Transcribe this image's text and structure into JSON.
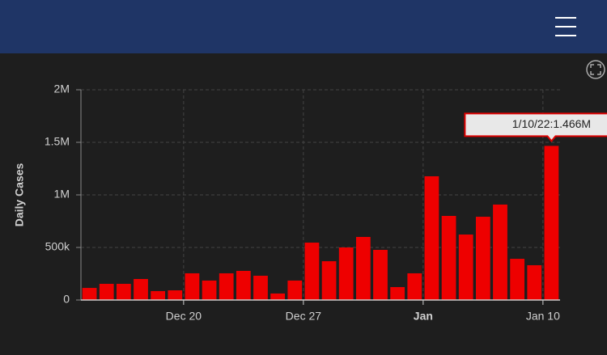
{
  "chart_data": {
    "type": "bar",
    "ylabel": "Daily Cases",
    "categories": [
      null,
      null,
      null,
      null,
      null,
      null,
      "Dec 20",
      null,
      null,
      null,
      null,
      null,
      null,
      "Dec 27",
      null,
      null,
      null,
      null,
      null,
      null,
      "Jan",
      null,
      null,
      null,
      null,
      null,
      null,
      "Jan 10"
    ],
    "values": [
      115000,
      154000,
      154000,
      200000,
      85000,
      92000,
      254000,
      185000,
      254000,
      277000,
      231000,
      62000,
      185000,
      546000,
      369000,
      500000,
      600000,
      477000,
      123000,
      254000,
      1177000,
      800000,
      623000,
      792000,
      908000,
      392000,
      331000,
      1466000
    ],
    "color": "#ee0000",
    "ylim": [
      0,
      2000000
    ],
    "yticks": [
      0,
      {
        "value": 500000,
        "label": "500k"
      },
      {
        "value": 1000000,
        "label": "1M"
      },
      {
        "value": 1500000,
        "label": "1.5M"
      },
      {
        "value": 2000000,
        "label": "2M"
      }
    ],
    "grid": true,
    "annotation": "1/10/22:1.466M"
  }
}
